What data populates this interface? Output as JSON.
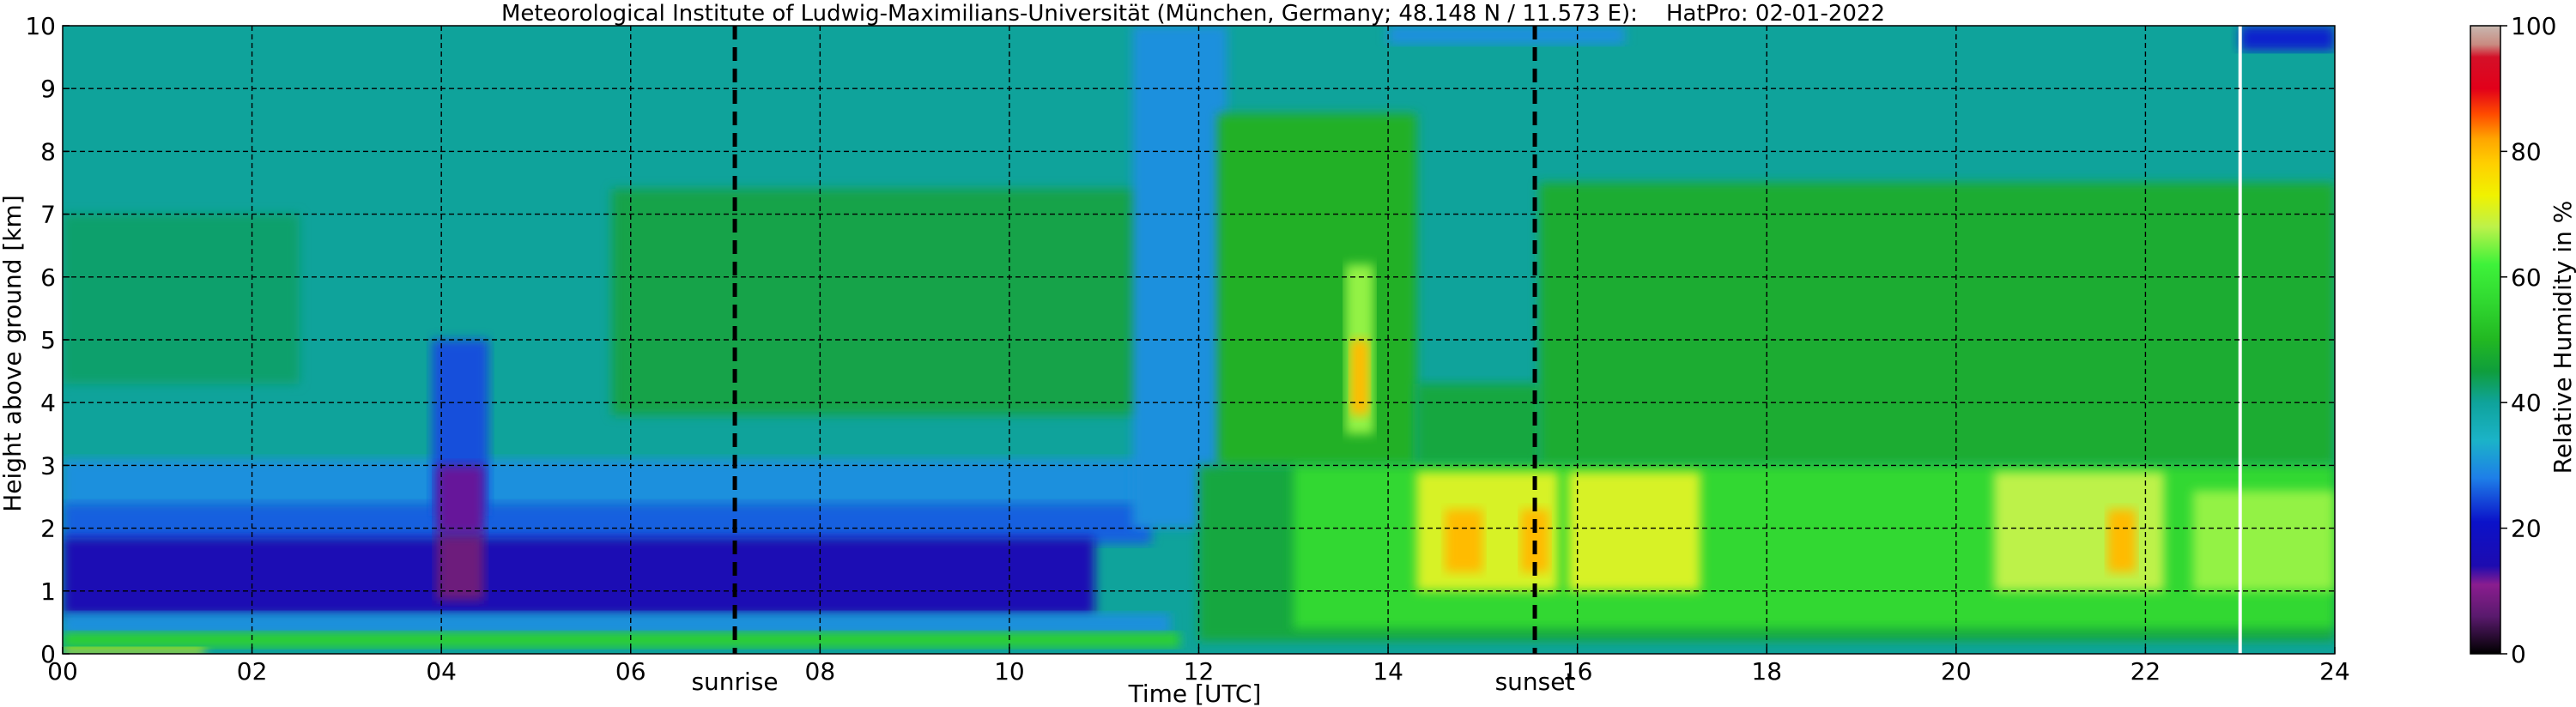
{
  "chart_data": {
    "type": "heatmap",
    "title": "Meteorological Institute of Ludwig-Maximilians-Universität (München, Germany; 48.148 N / 11.573 E):    HatPro: 02-01-2022",
    "xlabel": "Time [UTC]",
    "ylabel": "Height above ground [km]",
    "xlim": [
      0,
      24
    ],
    "ylim": [
      0,
      10
    ],
    "x_ticks": [
      "00",
      "02",
      "04",
      "06",
      "08",
      "10",
      "12",
      "14",
      "16",
      "18",
      "20",
      "22",
      "24"
    ],
    "y_ticks": [
      "0",
      "1",
      "2",
      "3",
      "4",
      "5",
      "6",
      "7",
      "8",
      "9",
      "10"
    ],
    "grid": true,
    "events": [
      {
        "label": "sunrise",
        "time": 7.1
      },
      {
        "label": "sunset",
        "time": 15.55
      }
    ],
    "colorbar": {
      "label": "Relative Humidity in %",
      "min": 0,
      "max": 100,
      "ticks": [
        "0",
        "20",
        "40",
        "60",
        "80",
        "100"
      ]
    },
    "colors": {
      "background_field": "#0fa39b",
      "humid_field": "#2fb53c",
      "moist": "#3ee52b",
      "wet": "#f0f200",
      "very_wet": "#ffb000",
      "dry": "#1e7fe8",
      "very_dry": "#0b12c9",
      "extreme_dry": "#8a1d8f",
      "data_gap": "#ffffff"
    },
    "data_gap_time": 23.0,
    "regions": [
      {
        "value": 38,
        "t0": 0,
        "t1": 24,
        "h0": 0,
        "h1": 10
      },
      {
        "value": 42,
        "t0": 0,
        "t1": 2.5,
        "h0": 4.3,
        "h1": 7.0
      },
      {
        "value": 45,
        "t0": 5.8,
        "t1": 11.5,
        "h0": 3.8,
        "h1": 7.4
      },
      {
        "value": 30,
        "t0": 0,
        "t1": 12,
        "h0": 2.3,
        "h1": 3.1
      },
      {
        "value": 26,
        "t0": 0,
        "t1": 11.5,
        "h0": 1.75,
        "h1": 2.4
      },
      {
        "value": 15,
        "t0": 0,
        "t1": 10.9,
        "h0": 0.6,
        "h1": 1.85
      },
      {
        "value": 30,
        "t0": 0,
        "t1": 11.7,
        "h0": 0.3,
        "h1": 0.65
      },
      {
        "value": 54,
        "t0": 0,
        "t1": 11.8,
        "h0": 0.1,
        "h1": 0.35
      },
      {
        "value": 72,
        "t0": 0,
        "t1": 1.5,
        "h0": 0,
        "h1": 0.1
      },
      {
        "value": 25,
        "t0": 3.9,
        "t1": 4.5,
        "h0": 2.2,
        "h1": 5.0
      },
      {
        "value": 12,
        "t0": 3.95,
        "t1": 4.45,
        "h0": 1.9,
        "h1": 3.0
      },
      {
        "value": 8,
        "t0": 3.95,
        "t1": 4.45,
        "h0": 0.85,
        "h1": 1.9
      },
      {
        "value": 30,
        "t0": 11.3,
        "t1": 12.3,
        "h0": 2.0,
        "h1": 10.0
      },
      {
        "value": 46,
        "t0": 12.0,
        "t1": 24,
        "h0": 0.2,
        "h1": 3.0
      },
      {
        "value": 48,
        "t0": 12.2,
        "t1": 14.3,
        "h0": 3.0,
        "h1": 8.6
      },
      {
        "value": 46,
        "t0": 14.3,
        "t1": 15.6,
        "h0": 3.0,
        "h1": 4.3
      },
      {
        "value": 47,
        "t0": 15.6,
        "t1": 24,
        "h0": 3.0,
        "h1": 7.5
      },
      {
        "value": 55,
        "t0": 13.0,
        "t1": 24,
        "h0": 0.4,
        "h1": 3.0
      },
      {
        "value": 70,
        "t0": 14.3,
        "t1": 15.8,
        "h0": 1.0,
        "h1": 2.9
      },
      {
        "value": 70,
        "t0": 15.9,
        "t1": 17.3,
        "h0": 1.0,
        "h1": 2.9
      },
      {
        "value": 68,
        "t0": 20.4,
        "t1": 22.2,
        "h0": 1.0,
        "h1": 2.9
      },
      {
        "value": 66,
        "t0": 22.5,
        "t1": 24,
        "h0": 1.0,
        "h1": 2.6
      },
      {
        "value": 66,
        "t0": 13.55,
        "t1": 13.85,
        "h0": 3.5,
        "h1": 6.2
      },
      {
        "value": 80,
        "t0": 13.6,
        "t1": 13.8,
        "h0": 3.8,
        "h1": 5.0
      },
      {
        "value": 80,
        "t0": 14.6,
        "t1": 15.0,
        "h0": 1.3,
        "h1": 2.3
      },
      {
        "value": 80,
        "t0": 15.4,
        "t1": 15.7,
        "h0": 1.3,
        "h1": 2.3
      },
      {
        "value": 80,
        "t0": 21.6,
        "t1": 21.9,
        "h0": 1.3,
        "h1": 2.3
      },
      {
        "value": 22,
        "t0": 23.0,
        "t1": 24,
        "h0": 9.6,
        "h1": 10.0
      },
      {
        "value": 30,
        "t0": 14.0,
        "t1": 16.5,
        "h0": 9.7,
        "h1": 10.0
      }
    ]
  }
}
